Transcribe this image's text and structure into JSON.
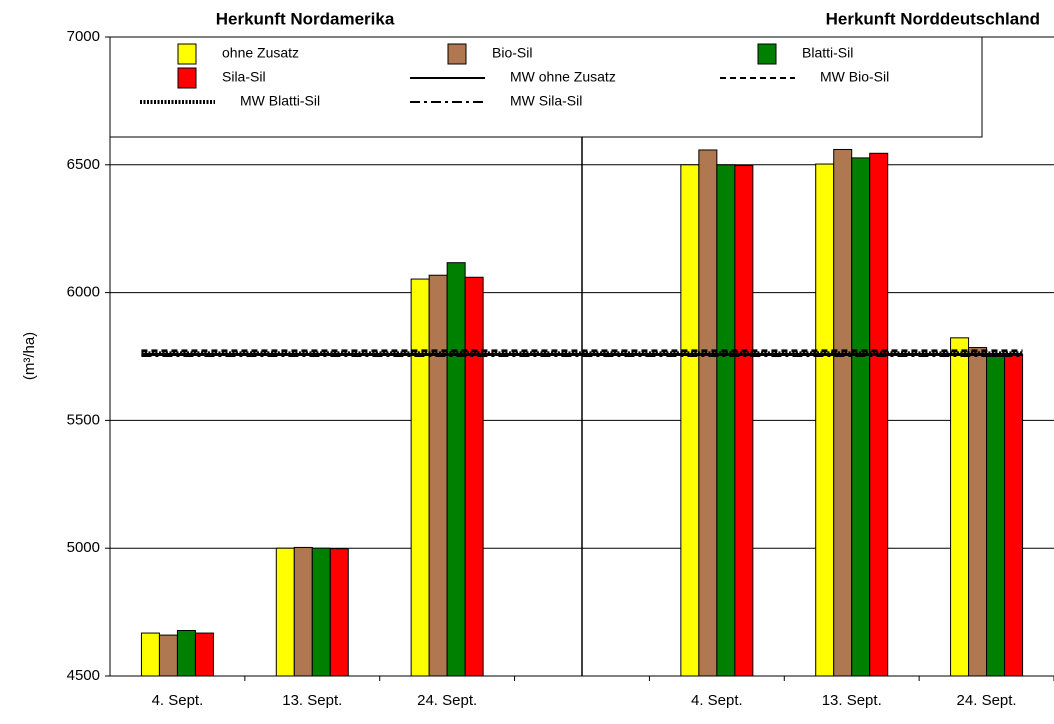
{
  "chart_data": {
    "type": "bar",
    "headers": [
      "Herkunft Nordamerika",
      "Herkunft Norddeutschland"
    ],
    "y_label": "(m³/ha)",
    "categories": [
      "4. Sept.",
      "13. Sept.",
      "24. Sept.",
      null,
      "4. Sept.",
      "13. Sept.",
      "24. Sept."
    ],
    "series": [
      {
        "name": "ohne Zusatz",
        "color": "#ffff00",
        "values": [
          4668,
          5000,
          6053,
          null,
          6500,
          6503,
          5823
        ]
      },
      {
        "name": "Bio-Sil",
        "color": "#b07850",
        "values": [
          4660,
          5003,
          6068,
          null,
          6558,
          6560,
          5785
        ]
      },
      {
        "name": "Blatti-Sil",
        "color": "#008000",
        "values": [
          4678,
          5000,
          6117,
          null,
          6500,
          6527,
          5750
        ]
      },
      {
        "name": "Sila-Sil",
        "color": "#ff0000",
        "values": [
          4668,
          4998,
          6060,
          null,
          6497,
          6545,
          5758
        ]
      }
    ],
    "mean_lines": [
      {
        "name": "MW ohne Zusatz",
        "style": "solid",
        "value": 5758
      },
      {
        "name": "MW Bio-Sil",
        "style": "dashed",
        "value": 5772
      },
      {
        "name": "MW Blatti-Sil",
        "style": "dotted",
        "value": 5762
      },
      {
        "name": "MW Sila-Sil",
        "style": "dashdot",
        "value": 5754
      }
    ],
    "ylim": [
      4500,
      7000
    ],
    "yticks": [
      4500,
      5000,
      5500,
      6000,
      6500,
      7000
    ],
    "grid": true
  }
}
